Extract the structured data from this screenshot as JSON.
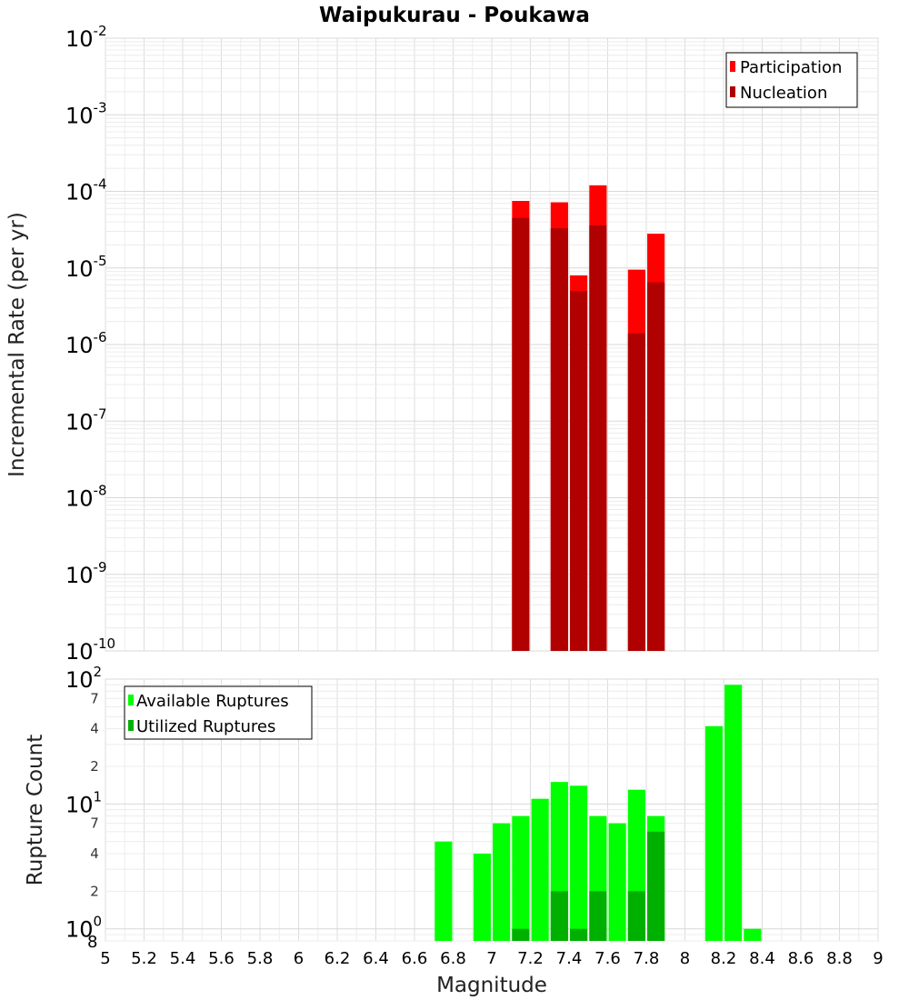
{
  "chart_data": [
    {
      "type": "bar",
      "title": "Waipukurau - Poukawa",
      "xlabel": "",
      "ylabel": "Incremental Rate (per yr)",
      "yscale": "log",
      "ylim": [
        1e-10,
        0.01
      ],
      "xlim": [
        5,
        9
      ],
      "grid": true,
      "legend_position": "top-right",
      "bar_width": 0.09,
      "y_ticks": [
        {
          "base": "10",
          "exp": "-10"
        },
        {
          "base": "10",
          "exp": "-9"
        },
        {
          "base": "10",
          "exp": "-8"
        },
        {
          "base": "10",
          "exp": "-7"
        },
        {
          "base": "10",
          "exp": "-6"
        },
        {
          "base": "10",
          "exp": "-5"
        },
        {
          "base": "10",
          "exp": "-4"
        },
        {
          "base": "10",
          "exp": "-3"
        },
        {
          "base": "10",
          "exp": "-2"
        }
      ],
      "series": [
        {
          "name": "Participation",
          "color": "#ff0000",
          "points": [
            {
              "x": 7.15,
              "y": 7.5e-05
            },
            {
              "x": 7.35,
              "y": 7.2e-05
            },
            {
              "x": 7.45,
              "y": 8e-06
            },
            {
              "x": 7.55,
              "y": 0.00012
            },
            {
              "x": 7.75,
              "y": 9.5e-06
            },
            {
              "x": 7.85,
              "y": 2.8e-05
            }
          ]
        },
        {
          "name": "Nucleation",
          "color": "#b00000",
          "points": [
            {
              "x": 7.15,
              "y": 4.5e-05
            },
            {
              "x": 7.35,
              "y": 3.3e-05
            },
            {
              "x": 7.45,
              "y": 5e-06
            },
            {
              "x": 7.55,
              "y": 3.6e-05
            },
            {
              "x": 7.75,
              "y": 1.4e-06
            },
            {
              "x": 7.85,
              "y": 6.5e-06
            }
          ]
        }
      ]
    },
    {
      "type": "bar",
      "title": "",
      "xlabel": "Magnitude",
      "ylabel": "Rupture Count",
      "yscale": "log",
      "ylim": [
        0.8,
        100
      ],
      "xlim": [
        5,
        9
      ],
      "grid": true,
      "legend_position": "top-left",
      "bar_width": 0.09,
      "x_ticks": [
        "5",
        "5.2",
        "5.4",
        "5.6",
        "5.8",
        "6",
        "6.2",
        "6.4",
        "6.6",
        "6.8",
        "7",
        "7.2",
        "7.4",
        "7.6",
        "7.8",
        "8",
        "8.2",
        "8.4",
        "8.6",
        "8.8",
        "9"
      ],
      "y_major_ticks": [
        {
          "value": 1,
          "base": "10",
          "exp": "0"
        },
        {
          "value": 10,
          "base": "10",
          "exp": "1"
        },
        {
          "value": 100,
          "base": "10",
          "exp": "2"
        }
      ],
      "y_bottom_label": "8",
      "y_minor_ticks": [
        {
          "value": 2,
          "label": "2"
        },
        {
          "value": 4,
          "label": "4"
        },
        {
          "value": 7,
          "label": "7"
        },
        {
          "value": 20,
          "label": "2"
        },
        {
          "value": 40,
          "label": "4"
        },
        {
          "value": 70,
          "label": "7"
        }
      ],
      "series": [
        {
          "name": "Available Ruptures",
          "color": "#00ff00",
          "points": [
            {
              "x": 6.75,
              "y": 5
            },
            {
              "x": 6.95,
              "y": 4
            },
            {
              "x": 7.05,
              "y": 7
            },
            {
              "x": 7.15,
              "y": 8
            },
            {
              "x": 7.25,
              "y": 11
            },
            {
              "x": 7.35,
              "y": 15
            },
            {
              "x": 7.45,
              "y": 14
            },
            {
              "x": 7.55,
              "y": 8
            },
            {
              "x": 7.65,
              "y": 7
            },
            {
              "x": 7.75,
              "y": 13
            },
            {
              "x": 7.85,
              "y": 8
            },
            {
              "x": 8.15,
              "y": 42
            },
            {
              "x": 8.25,
              "y": 90
            },
            {
              "x": 8.35,
              "y": 1
            }
          ]
        },
        {
          "name": "Utilized Ruptures",
          "color": "#00b000",
          "points": [
            {
              "x": 7.15,
              "y": 1
            },
            {
              "x": 7.35,
              "y": 2
            },
            {
              "x": 7.45,
              "y": 1
            },
            {
              "x": 7.55,
              "y": 2
            },
            {
              "x": 7.75,
              "y": 2
            },
            {
              "x": 7.85,
              "y": 6
            }
          ]
        }
      ]
    }
  ]
}
